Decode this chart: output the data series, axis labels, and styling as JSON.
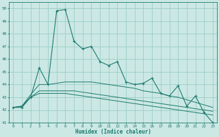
{
  "xlabel": "Humidex (Indice chaleur)",
  "xlim": [
    -0.5,
    23.5
  ],
  "ylim": [
    41,
    50.5
  ],
  "yticks": [
    41,
    42,
    43,
    44,
    45,
    46,
    47,
    48,
    49,
    50
  ],
  "xticks": [
    0,
    1,
    2,
    3,
    4,
    5,
    6,
    7,
    8,
    9,
    10,
    11,
    12,
    13,
    14,
    15,
    16,
    17,
    18,
    19,
    20,
    21,
    22,
    23
  ],
  "bg_color": "#cce8e4",
  "grid_color": "#99cdc7",
  "line_color": "#1a7a6e",
  "series1": [
    42.2,
    42.2,
    43.0,
    45.3,
    44.0,
    49.8,
    49.9,
    47.4,
    46.8,
    47.0,
    45.8,
    45.5,
    45.8,
    44.2,
    44.0,
    44.1,
    44.5,
    43.3,
    43.1,
    43.9,
    42.3,
    43.1,
    41.8,
    41.0
  ],
  "series2": [
    42.2,
    42.3,
    43.2,
    44.0,
    44.0,
    44.1,
    44.2,
    44.2,
    44.2,
    44.2,
    44.1,
    44.0,
    43.9,
    43.8,
    43.7,
    43.5,
    43.4,
    43.3,
    43.1,
    43.0,
    42.8,
    42.6,
    42.4,
    42.2
  ],
  "series3": [
    42.2,
    42.3,
    43.0,
    43.5,
    43.5,
    43.5,
    43.5,
    43.5,
    43.4,
    43.3,
    43.2,
    43.1,
    43.0,
    42.9,
    42.8,
    42.7,
    42.6,
    42.5,
    42.4,
    42.3,
    42.2,
    42.1,
    42.0,
    41.9
  ],
  "series4": [
    42.2,
    42.3,
    43.0,
    43.3,
    43.3,
    43.3,
    43.3,
    43.2,
    43.1,
    43.0,
    42.9,
    42.8,
    42.7,
    42.6,
    42.5,
    42.4,
    42.3,
    42.2,
    42.1,
    42.0,
    41.9,
    41.8,
    41.7,
    41.6
  ]
}
